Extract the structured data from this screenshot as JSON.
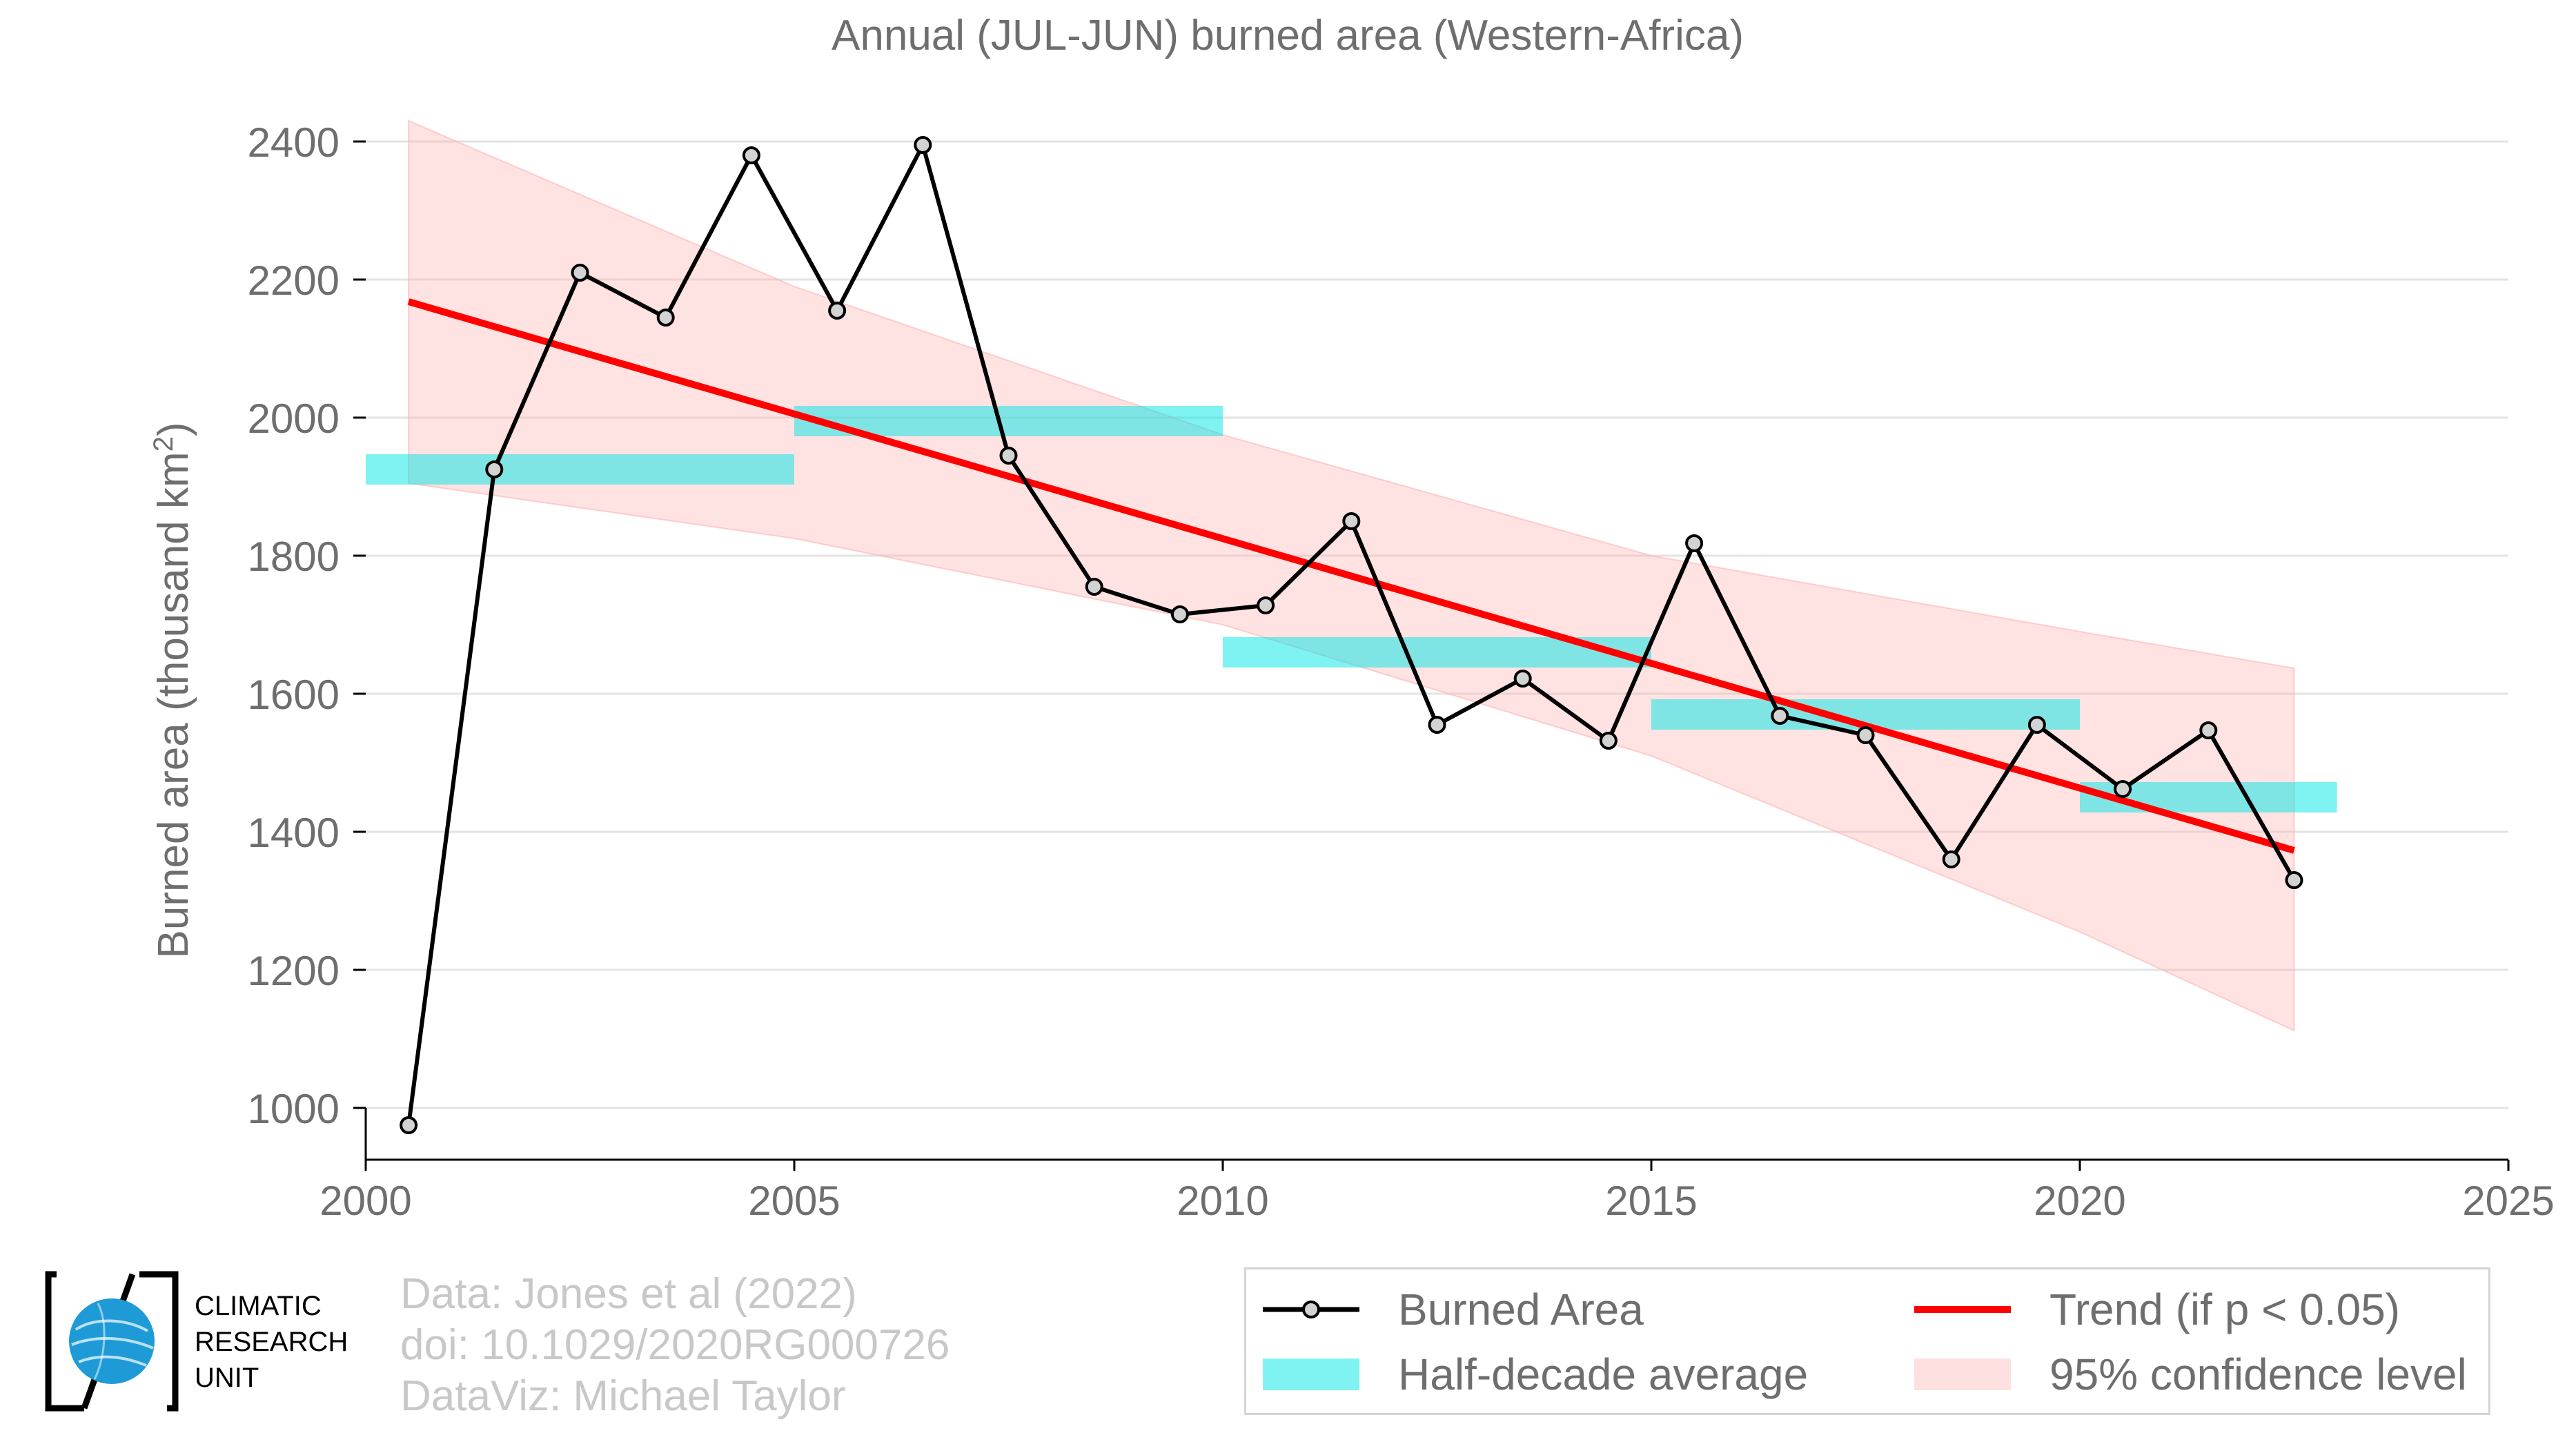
{
  "chart_data": {
    "type": "line",
    "title": "Annual (JUL-JUN) burned area (Western-Africa)",
    "ylabel_main": "Burned area (thousand km",
    "ylabel_sup": "2",
    "ylabel_end": ")",
    "xlim": [
      2000,
      2025
    ],
    "ylim": [
      925,
      2475
    ],
    "xticks": [
      2000,
      2005,
      2010,
      2015,
      2020,
      2025
    ],
    "yticks": [
      1000,
      1200,
      1400,
      1600,
      1800,
      2000,
      2200,
      2400
    ],
    "grid": "horizontal",
    "legend_position": "bottom-right",
    "series": [
      {
        "name": "Burned Area",
        "kind": "line-markers",
        "color": "#000000",
        "marker_fill": "#d3d3d3",
        "x": [
          2000.5,
          2001.5,
          2002.5,
          2003.5,
          2004.5,
          2005.5,
          2006.5,
          2007.5,
          2008.5,
          2009.5,
          2010.5,
          2011.5,
          2012.5,
          2013.5,
          2014.5,
          2015.5,
          2016.5,
          2017.5,
          2018.5,
          2019.5,
          2020.5,
          2021.5,
          2022.5
        ],
        "y": [
          975,
          1925,
          2210,
          2145,
          2380,
          2155,
          2395,
          1945,
          1755,
          1715,
          1728,
          1850,
          1555,
          1622,
          1532,
          1818,
          1568,
          1540,
          1360,
          1555,
          1462,
          1547,
          1330
        ]
      },
      {
        "name": "Half-decade average",
        "kind": "bars",
        "color": "#00e5e5",
        "segments": [
          {
            "x0": 2000,
            "x1": 2005,
            "y": 1925
          },
          {
            "x0": 2005,
            "x1": 2010,
            "y": 1995
          },
          {
            "x0": 2010,
            "x1": 2015,
            "y": 1660
          },
          {
            "x0": 2015,
            "x1": 2020,
            "y": 1570
          },
          {
            "x0": 2020,
            "x1": 2023,
            "y": 1450
          }
        ]
      },
      {
        "name": "Trend (if p < 0.05)",
        "kind": "trend",
        "color": "#ff0000",
        "x": [
          2000.5,
          2022.5
        ],
        "y": [
          2168,
          1373
        ]
      },
      {
        "name": "95% confidence level",
        "kind": "band",
        "color": "#ffb3b3",
        "x": [
          2000.5,
          2005,
          2010,
          2015,
          2020,
          2022.5
        ],
        "upper": [
          2430,
          2190,
          1975,
          1800,
          1690,
          1637
        ],
        "lower": [
          1905,
          1825,
          1700,
          1510,
          1255,
          1112
        ]
      }
    ]
  },
  "credits": {
    "line1": "Data: Jones et al (2022)",
    "line2": "doi: 10.1029/2020RG000726",
    "line3": "DataViz: Michael Taylor"
  },
  "logo": {
    "line1": "CLIMATIC",
    "line2": "RESEARCH",
    "line3": "UNIT"
  },
  "legend": {
    "item1": "Burned Area",
    "item2": "Trend (if p < 0.05)",
    "item3": "Half-decade average",
    "item4": "95% confidence level"
  }
}
